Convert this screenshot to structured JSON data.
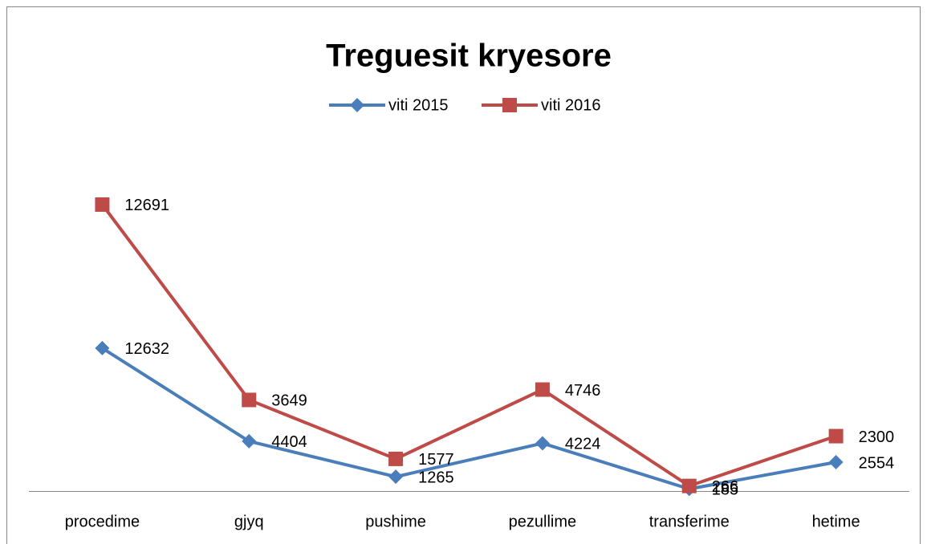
{
  "chart_data": {
    "type": "line",
    "stacked": true,
    "title": "Treguesit kryesore",
    "categories": [
      "procedime",
      "gjyq",
      "pushime",
      "pezullime",
      "transferime",
      "hetime"
    ],
    "series": [
      {
        "name": "viti 2015",
        "color": "#4a7ebb",
        "marker": "diamond",
        "values": [
          12632,
          4404,
          1265,
          4224,
          185,
          2554
        ]
      },
      {
        "name": "viti 2016",
        "color": "#be4b48",
        "marker": "square",
        "values": [
          12691,
          3649,
          1577,
          4746,
          266,
          2300
        ]
      }
    ],
    "ylim": [
      0,
      30000
    ],
    "legend": "top"
  }
}
